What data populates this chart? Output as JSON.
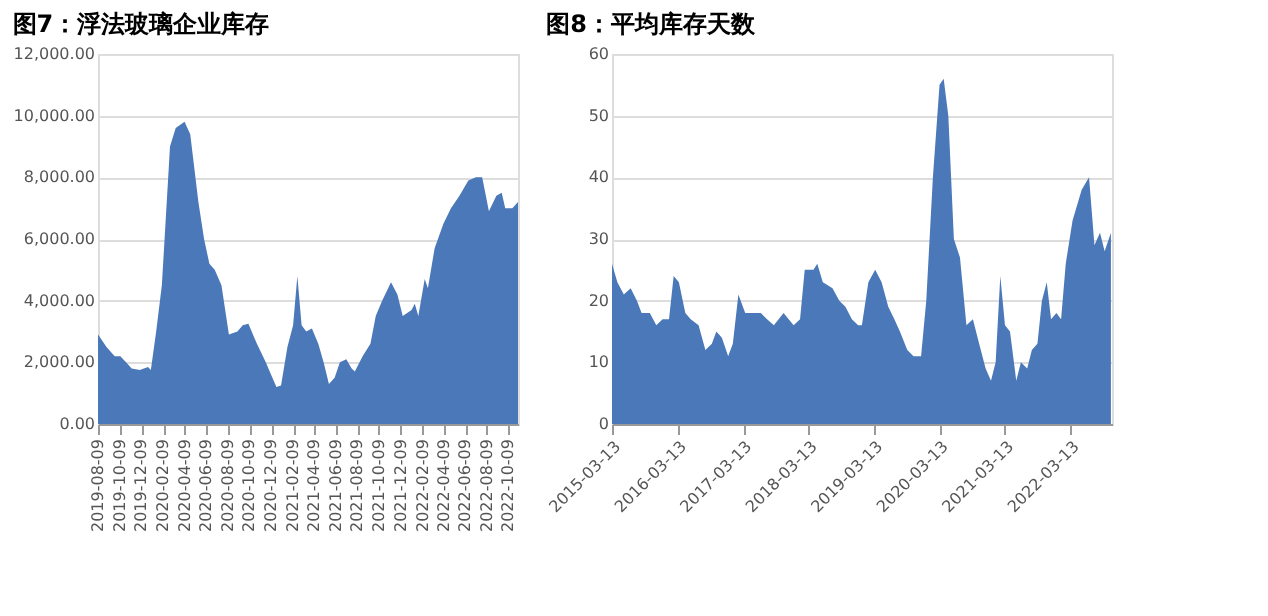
{
  "chart_data": [
    {
      "type": "area",
      "title": "图7：浮法玻璃企业库存",
      "grid": "y",
      "x": [
        "2019-08-09",
        "2019-09-02",
        "2019-09-25",
        "2019-10-11",
        "2019-10-27",
        "2019-11-12",
        "2019-12-05",
        "2019-12-28",
        "2020-01-05",
        "2020-01-20",
        "2020-02-05",
        "2020-02-28",
        "2020-03-15",
        "2020-04-09",
        "2020-04-25",
        "2020-05-18",
        "2020-06-03",
        "2020-06-18",
        "2020-07-03",
        "2020-07-22",
        "2020-08-12",
        "2020-09-05",
        "2020-09-20",
        "2020-10-06",
        "2020-10-30",
        "2020-11-24",
        "2020-12-09",
        "2020-12-24",
        "2021-01-06",
        "2021-01-24",
        "2021-02-09",
        "2021-02-21",
        "2021-03-05",
        "2021-03-18",
        "2021-04-03",
        "2021-04-21",
        "2021-05-06",
        "2021-05-21",
        "2021-06-06",
        "2021-06-21",
        "2021-07-09",
        "2021-07-24",
        "2021-08-02",
        "2021-08-24",
        "2021-09-15",
        "2021-09-30",
        "2021-10-18",
        "2021-11-12",
        "2021-11-30",
        "2021-12-15",
        "2022-01-09",
        "2022-01-18",
        "2022-01-28",
        "2022-02-15",
        "2022-02-24",
        "2022-03-15",
        "2022-04-09",
        "2022-04-30",
        "2022-05-24",
        "2022-06-18",
        "2022-07-09",
        "2022-07-27",
        "2022-08-15",
        "2022-09-05",
        "2022-09-20",
        "2022-09-30",
        "2022-10-20",
        "2022-11-05"
      ],
      "series": [
        {
          "color": "#4a78b8",
          "values": [
            2900,
            2500,
            2200,
            2200,
            2000,
            1800,
            1750,
            1850,
            1750,
            3000,
            4500,
            9000,
            9600,
            9800,
            9400,
            7200,
            6000,
            5200,
            5000,
            4500,
            2900,
            3000,
            3200,
            3250,
            2600,
            2000,
            1600,
            1200,
            1250,
            2500,
            3200,
            4800,
            3200,
            3000,
            3100,
            2600,
            2000,
            1300,
            1500,
            2000,
            2100,
            1800,
            1700,
            2200,
            2600,
            3500,
            4000,
            4600,
            4200,
            3500,
            3700,
            3900,
            3500,
            4700,
            4400,
            5700,
            6500,
            7000,
            7400,
            7900,
            8000,
            8000,
            6900,
            7400,
            7500,
            7000,
            7000,
            7200
          ]
        }
      ],
      "xlim": [
        "2019-08-09",
        "2022-11-05"
      ],
      "xticks": [
        "2019-08-09",
        "2019-10-09",
        "2019-12-09",
        "2020-02-09",
        "2020-04-09",
        "2020-06-09",
        "2020-08-09",
        "2020-10-09",
        "2020-12-09",
        "2021-02-09",
        "2021-04-09",
        "2021-06-09",
        "2021-08-09",
        "2021-10-09",
        "2021-12-09",
        "2022-02-09",
        "2022-04-09",
        "2022-06-09",
        "2022-08-09",
        "2022-10-09"
      ],
      "ylim": [
        0,
        12000
      ],
      "yticks": [
        {
          "value": 0,
          "label": "0.00"
        },
        {
          "value": 2000,
          "label": "2,000.00"
        },
        {
          "value": 4000,
          "label": "4,000.00"
        },
        {
          "value": 6000,
          "label": "6,000.00"
        },
        {
          "value": 8000,
          "label": "8,000.00"
        },
        {
          "value": 10000,
          "label": "10,000.00"
        },
        {
          "value": 12000,
          "label": "12,000.00"
        }
      ]
    },
    {
      "type": "area",
      "title": "图8：平均库存天数",
      "grid": "y",
      "x": [
        "2015-03-13",
        "2015-04-12",
        "2015-05-18",
        "2015-06-25",
        "2015-07-30",
        "2015-08-25",
        "2015-10-10",
        "2015-11-15",
        "2015-12-20",
        "2016-01-25",
        "2016-02-20",
        "2016-03-20",
        "2016-04-25",
        "2016-05-25",
        "2016-07-08",
        "2016-08-15",
        "2016-09-20",
        "2016-10-15",
        "2016-11-15",
        "2016-12-20",
        "2017-01-15",
        "2017-02-15",
        "2017-03-25",
        "2017-05-15",
        "2017-06-20",
        "2017-07-25",
        "2017-09-01",
        "2017-10-25",
        "2017-12-20",
        "2018-01-25",
        "2018-02-20",
        "2018-04-10",
        "2018-05-01",
        "2018-06-01",
        "2018-07-25",
        "2018-09-01",
        "2018-10-05",
        "2018-11-10",
        "2018-12-15",
        "2019-01-05",
        "2019-02-10",
        "2019-03-20",
        "2019-04-25",
        "2019-06-01",
        "2019-07-05",
        "2019-08-05",
        "2019-09-15",
        "2019-10-20",
        "2019-12-01",
        "2019-12-30",
        "2020-02-05",
        "2020-03-13",
        "2020-04-05",
        "2020-05-01",
        "2020-06-01",
        "2020-07-05",
        "2020-08-10",
        "2020-09-15",
        "2020-10-20",
        "2020-11-25",
        "2020-12-25",
        "2021-01-20",
        "2021-02-15",
        "2021-03-13",
        "2021-04-10",
        "2021-05-15",
        "2021-06-10",
        "2021-07-15",
        "2021-08-10",
        "2021-09-10",
        "2021-10-05",
        "2021-11-01",
        "2021-11-25",
        "2021-12-25",
        "2022-01-20",
        "2022-02-15",
        "2022-03-25",
        "2022-05-15",
        "2022-06-25",
        "2022-07-25",
        "2022-08-25",
        "2022-09-20",
        "2022-10-25"
      ],
      "series": [
        {
          "color": "#4a78b8",
          "values": [
            26,
            23,
            21,
            22,
            20,
            18,
            18,
            16,
            17,
            17,
            24,
            23,
            18,
            17,
            16,
            12,
            13,
            15,
            14,
            11,
            13,
            21,
            18,
            18,
            18,
            17,
            16,
            18,
            16,
            17,
            25,
            25,
            26,
            23,
            22,
            20,
            19,
            17,
            16,
            16,
            23,
            25,
            23,
            19,
            17,
            15,
            12,
            11,
            11,
            20,
            40,
            55,
            56,
            50,
            30,
            27,
            16,
            17,
            13,
            9,
            7,
            10,
            24,
            16,
            15,
            7,
            10,
            9,
            12,
            13,
            20,
            23,
            17,
            18,
            17,
            26,
            33,
            38,
            40,
            29,
            31,
            28,
            31
          ]
        }
      ],
      "xlim": [
        "2015-03-13",
        "2022-10-31"
      ],
      "xticks": [
        "2015-03-13",
        "2016-03-13",
        "2017-03-13",
        "2018-03-13",
        "2019-03-13",
        "2020-03-13",
        "2021-03-13",
        "2022-03-13"
      ],
      "ylim": [
        0,
        60
      ],
      "yticks": [
        0,
        10,
        20,
        30,
        40,
        50,
        60
      ]
    }
  ]
}
